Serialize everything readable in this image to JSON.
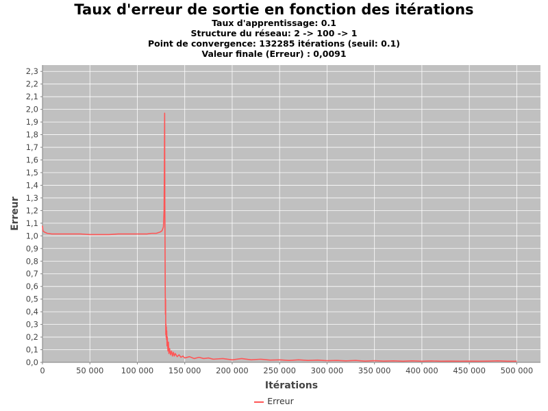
{
  "chart_data": {
    "type": "line",
    "title": "Taux d'erreur de sortie en fonction des itérations",
    "subtitles": [
      "Taux d'apprentissage: 0.1",
      "Structure du réseau: 2 -> 100 -> 1",
      "Point de convergence: 132285 itérations (seuil: 0.1)",
      "Valeur finale (Erreur) : 0,0091"
    ],
    "xlabel": "Itérations",
    "ylabel": "Erreur",
    "xlim": [
      0,
      525000
    ],
    "ylim": [
      0,
      2.35
    ],
    "x_ticks": [
      0,
      50000,
      100000,
      150000,
      200000,
      250000,
      300000,
      350000,
      400000,
      450000,
      500000
    ],
    "x_tick_labels": [
      "0",
      "50 000",
      "100 000",
      "150 000",
      "200 000",
      "250 000",
      "300 000",
      "350 000",
      "400 000",
      "450 000",
      "500 000"
    ],
    "y_ticks": [
      0,
      0.1,
      0.2,
      0.3,
      0.4,
      0.5,
      0.6,
      0.7,
      0.8,
      0.9,
      1.0,
      1.1,
      1.2,
      1.3,
      1.4,
      1.5,
      1.6,
      1.7,
      1.8,
      1.9,
      2.0,
      2.1,
      2.2,
      2.3
    ],
    "y_tick_labels": [
      "0,0",
      "0,1",
      "0,2",
      "0,3",
      "0,4",
      "0,5",
      "0,6",
      "0,7",
      "0,8",
      "0,9",
      "1,0",
      "1,1",
      "1,2",
      "1,3",
      "1,4",
      "1,5",
      "1,6",
      "1,7",
      "1,8",
      "1,9",
      "2,0",
      "2,1",
      "2,2",
      "2,3"
    ],
    "grid": true,
    "legend_position": "bottom",
    "background_color": "#c0c0c0",
    "grid_color": "#ffffff",
    "series": [
      {
        "name": "Erreur",
        "color": "#ff5555",
        "x": [
          0,
          500,
          2000,
          5000,
          10000,
          20000,
          30000,
          40000,
          50000,
          60000,
          70000,
          80000,
          90000,
          100000,
          110000,
          115000,
          120000,
          124000,
          126000,
          127500,
          128200,
          128500,
          128800,
          129000,
          129200,
          129400,
          129600,
          129800,
          130000,
          130200,
          130400,
          130600,
          130800,
          131000,
          131300,
          131600,
          132000,
          132300,
          132800,
          133300,
          134000,
          135000,
          136000,
          137000,
          138000,
          139000,
          140000,
          142000,
          144000,
          146000,
          148000,
          150000,
          155000,
          160000,
          165000,
          170000,
          175000,
          180000,
          190000,
          200000,
          210000,
          220000,
          230000,
          240000,
          250000,
          260000,
          270000,
          280000,
          290000,
          300000,
          310000,
          320000,
          330000,
          340000,
          350000,
          360000,
          370000,
          380000,
          390000,
          400000,
          410000,
          420000,
          430000,
          440000,
          450000,
          460000,
          470000,
          480000,
          490000,
          500000
        ],
        "y": [
          1.08,
          1.04,
          1.03,
          1.02,
          1.015,
          1.015,
          1.015,
          1.015,
          1.01,
          1.01,
          1.01,
          1.015,
          1.015,
          1.015,
          1.015,
          1.02,
          1.02,
          1.03,
          1.04,
          1.07,
          1.2,
          1.5,
          1.97,
          1.3,
          0.95,
          0.6,
          0.38,
          0.5,
          0.22,
          0.3,
          0.2,
          0.28,
          0.18,
          0.25,
          0.13,
          0.2,
          0.12,
          0.09,
          0.16,
          0.07,
          0.11,
          0.06,
          0.09,
          0.05,
          0.08,
          0.05,
          0.07,
          0.045,
          0.06,
          0.04,
          0.05,
          0.035,
          0.045,
          0.03,
          0.04,
          0.03,
          0.035,
          0.025,
          0.03,
          0.02,
          0.03,
          0.02,
          0.025,
          0.018,
          0.02,
          0.015,
          0.02,
          0.015,
          0.018,
          0.013,
          0.015,
          0.012,
          0.015,
          0.01,
          0.013,
          0.01,
          0.012,
          0.009,
          0.012,
          0.009,
          0.011,
          0.009,
          0.01,
          0.009,
          0.01,
          0.009,
          0.01,
          0.012,
          0.009,
          0.0091
        ]
      }
    ]
  }
}
